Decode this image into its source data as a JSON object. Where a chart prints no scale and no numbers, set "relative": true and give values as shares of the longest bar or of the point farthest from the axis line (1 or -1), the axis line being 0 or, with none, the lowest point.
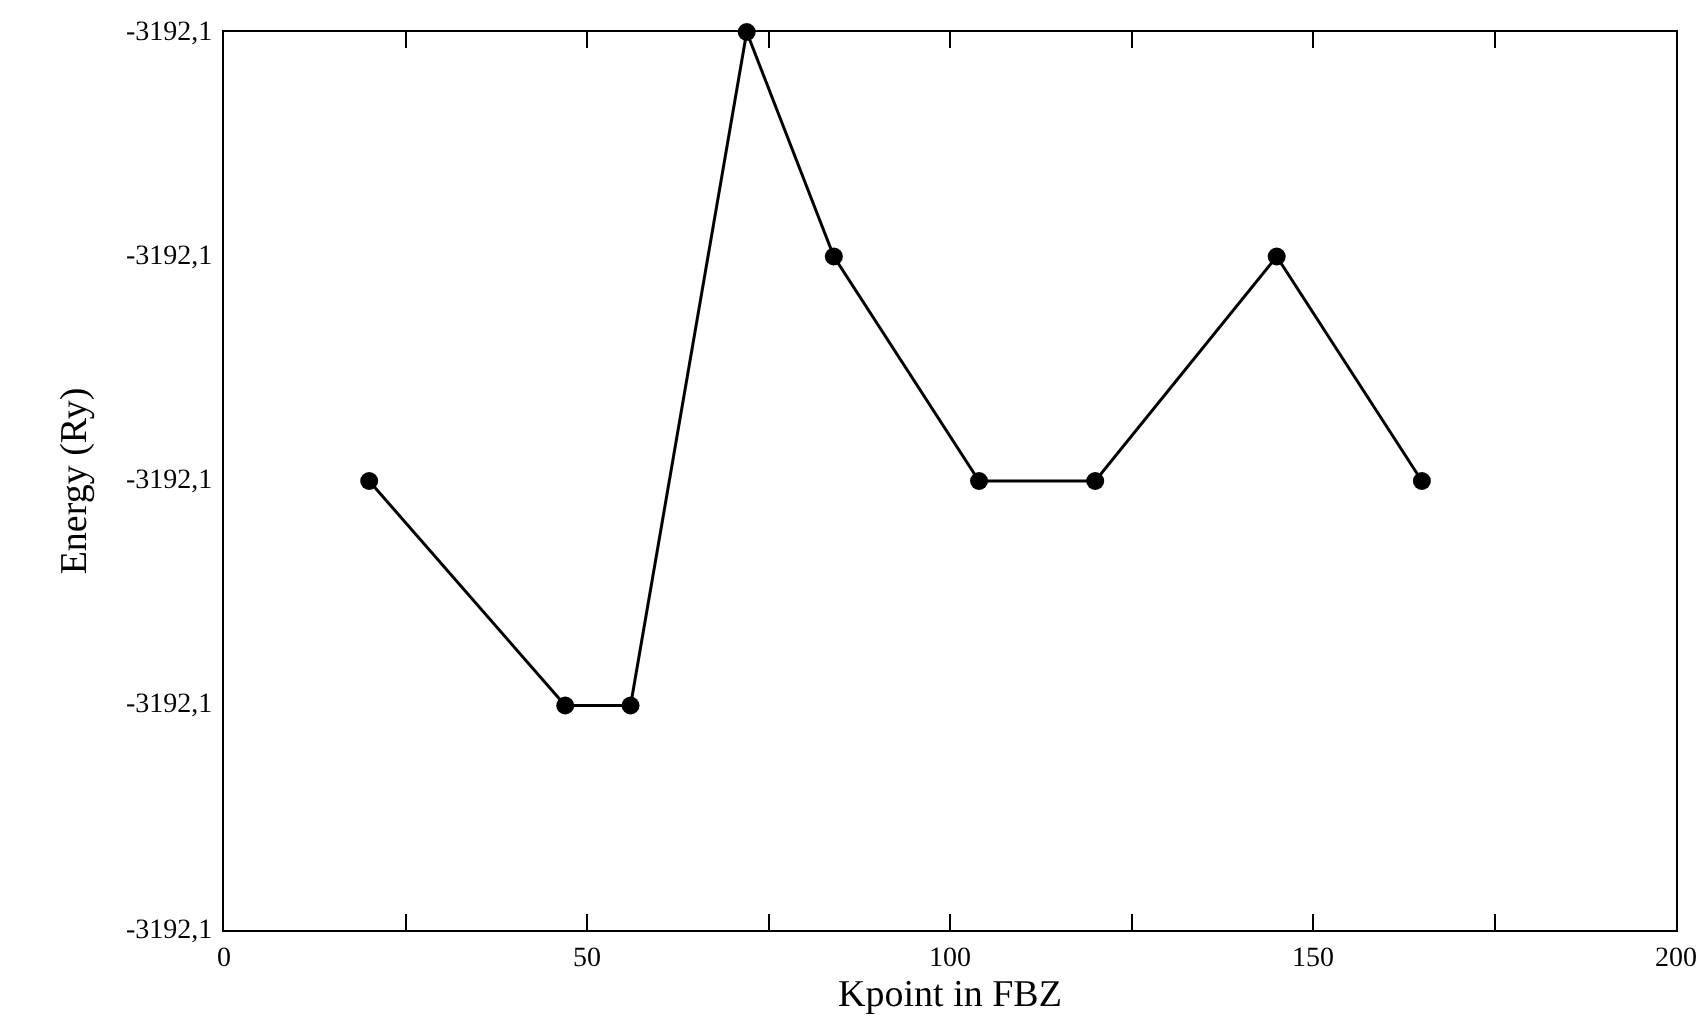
{
  "chart_data": {
    "type": "line",
    "xlabel": "Kpoint in FBZ",
    "ylabel": "Energy (Ry)",
    "x": [
      20,
      47,
      56,
      72,
      84,
      104,
      120,
      145,
      165
    ],
    "series": [
      {
        "color": "#000000",
        "values": [
          0.5,
          0.25,
          0.25,
          1,
          0.75,
          0.5,
          0.5,
          0.75,
          0.5
        ]
      }
    ],
    "xlim": [
      0,
      200
    ],
    "relative": true,
    "annotations": [
      "-3192,1",
      "-3192,1",
      "-3192,1",
      "-3192,1",
      "-3192,1"
    ],
    "xticks": [
      0,
      {
        "value": 25,
        "label": null
      },
      50,
      {
        "value": 75,
        "label": null
      },
      100,
      {
        "value": 125,
        "label": null
      },
      150,
      {
        "value": 175,
        "label": null
      },
      200
    ],
    "grid": false,
    "marker": "circle",
    "line_style": "solid"
  }
}
